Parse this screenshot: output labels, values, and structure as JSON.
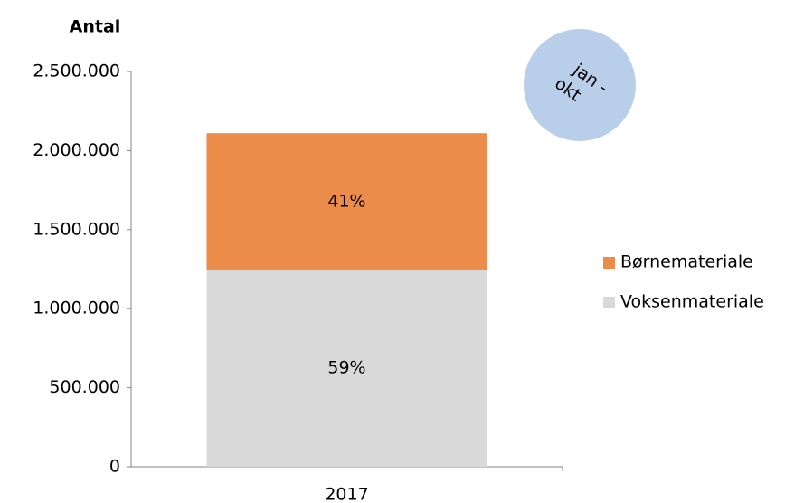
{
  "chart_data": {
    "type": "stacked_bar",
    "y_label": "Antal",
    "categories": [
      "2017"
    ],
    "series": [
      {
        "name": "Voksenmateriale",
        "color": "#d9d9d9",
        "values": [
          1245000
        ],
        "share_labels": [
          "59%"
        ]
      },
      {
        "name": "Børnemateriale",
        "color": "#eb8c4b",
        "values": [
          865000
        ],
        "share_labels": [
          "41%"
        ]
      }
    ],
    "ylim": [
      0,
      2500000
    ],
    "yticks": [
      0,
      {
        "value": 500000,
        "label": "500.000"
      },
      {
        "value": 1000000,
        "label": "1.000.000"
      },
      {
        "value": 1500000,
        "label": "1.500.000"
      },
      {
        "value": 2000000,
        "label": "2.000.000"
      },
      {
        "value": 2500000,
        "label": "2.500.000"
      }
    ],
    "annotation": {
      "lines": [
        "jan -",
        "okt"
      ],
      "color": "#b9cfe9"
    },
    "legend": "right"
  }
}
